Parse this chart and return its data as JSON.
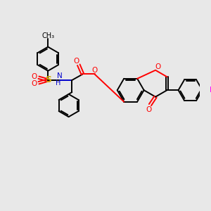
{
  "background_color": "#e8e8e8",
  "bond_color": "#000000",
  "atom_colors": {
    "O": "#ff0000",
    "N": "#0000cd",
    "S": "#ccaa00",
    "F": "#ff00ff",
    "H": "#555555"
  },
  "figsize": [
    3.0,
    3.0
  ],
  "dpi": 100
}
